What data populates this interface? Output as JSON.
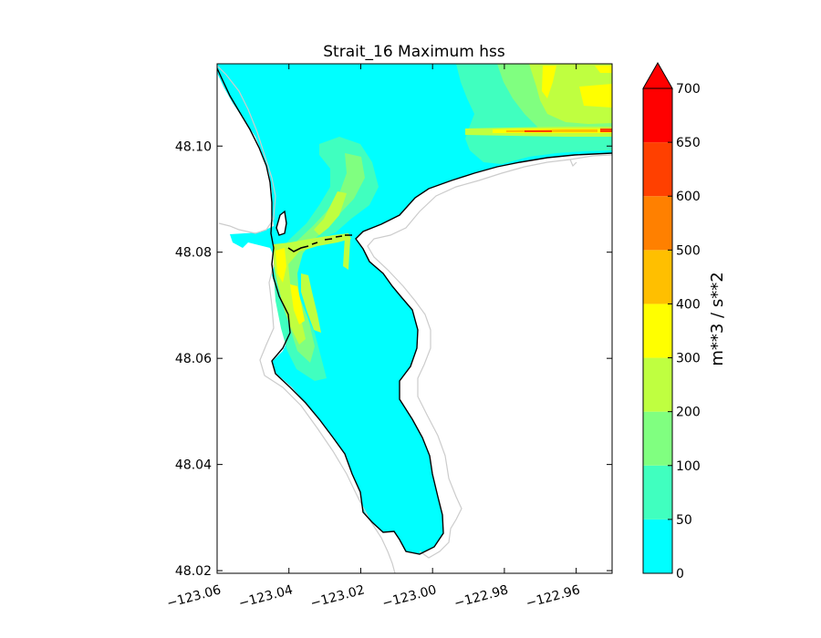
{
  "chart_data": {
    "type": "heatmap",
    "title": "Strait_16 Maximum hss",
    "xlabel": "",
    "ylabel": "",
    "xlim": [
      -123.06,
      -122.95
    ],
    "ylim": [
      48.0195,
      48.1155
    ],
    "x_ticks": [
      -123.06,
      -123.04,
      -123.02,
      -123.0,
      -122.98,
      -122.96
    ],
    "x_tick_labels": [
      "−123.06",
      "−123.04",
      "−123.02",
      "−123.00",
      "−122.98",
      "−122.96"
    ],
    "y_ticks": [
      48.02,
      48.04,
      48.06,
      48.08,
      48.1
    ],
    "y_tick_labels": [
      "48.02",
      "48.04",
      "48.06",
      "48.08",
      "48.10"
    ],
    "grid": false,
    "colorbar": {
      "label": "m**3 / s**2",
      "levels": [
        0,
        50,
        100,
        200,
        300,
        400,
        500,
        600,
        650,
        700
      ],
      "tick_labels": [
        "0",
        "50",
        "100",
        "200",
        "300",
        "400",
        "500",
        "600",
        "650",
        "700"
      ],
      "colors": [
        "#00ffff",
        "#40ffbf",
        "#80ff80",
        "#bfff40",
        "#ffff00",
        "#ffbf00",
        "#ff8000",
        "#ff4000",
        "#ff0000"
      ],
      "extend": "max",
      "extend_color": "#ff0000"
    },
    "outline_colors": {
      "coastline": "#000000",
      "land_contour": "#cccccc"
    }
  }
}
